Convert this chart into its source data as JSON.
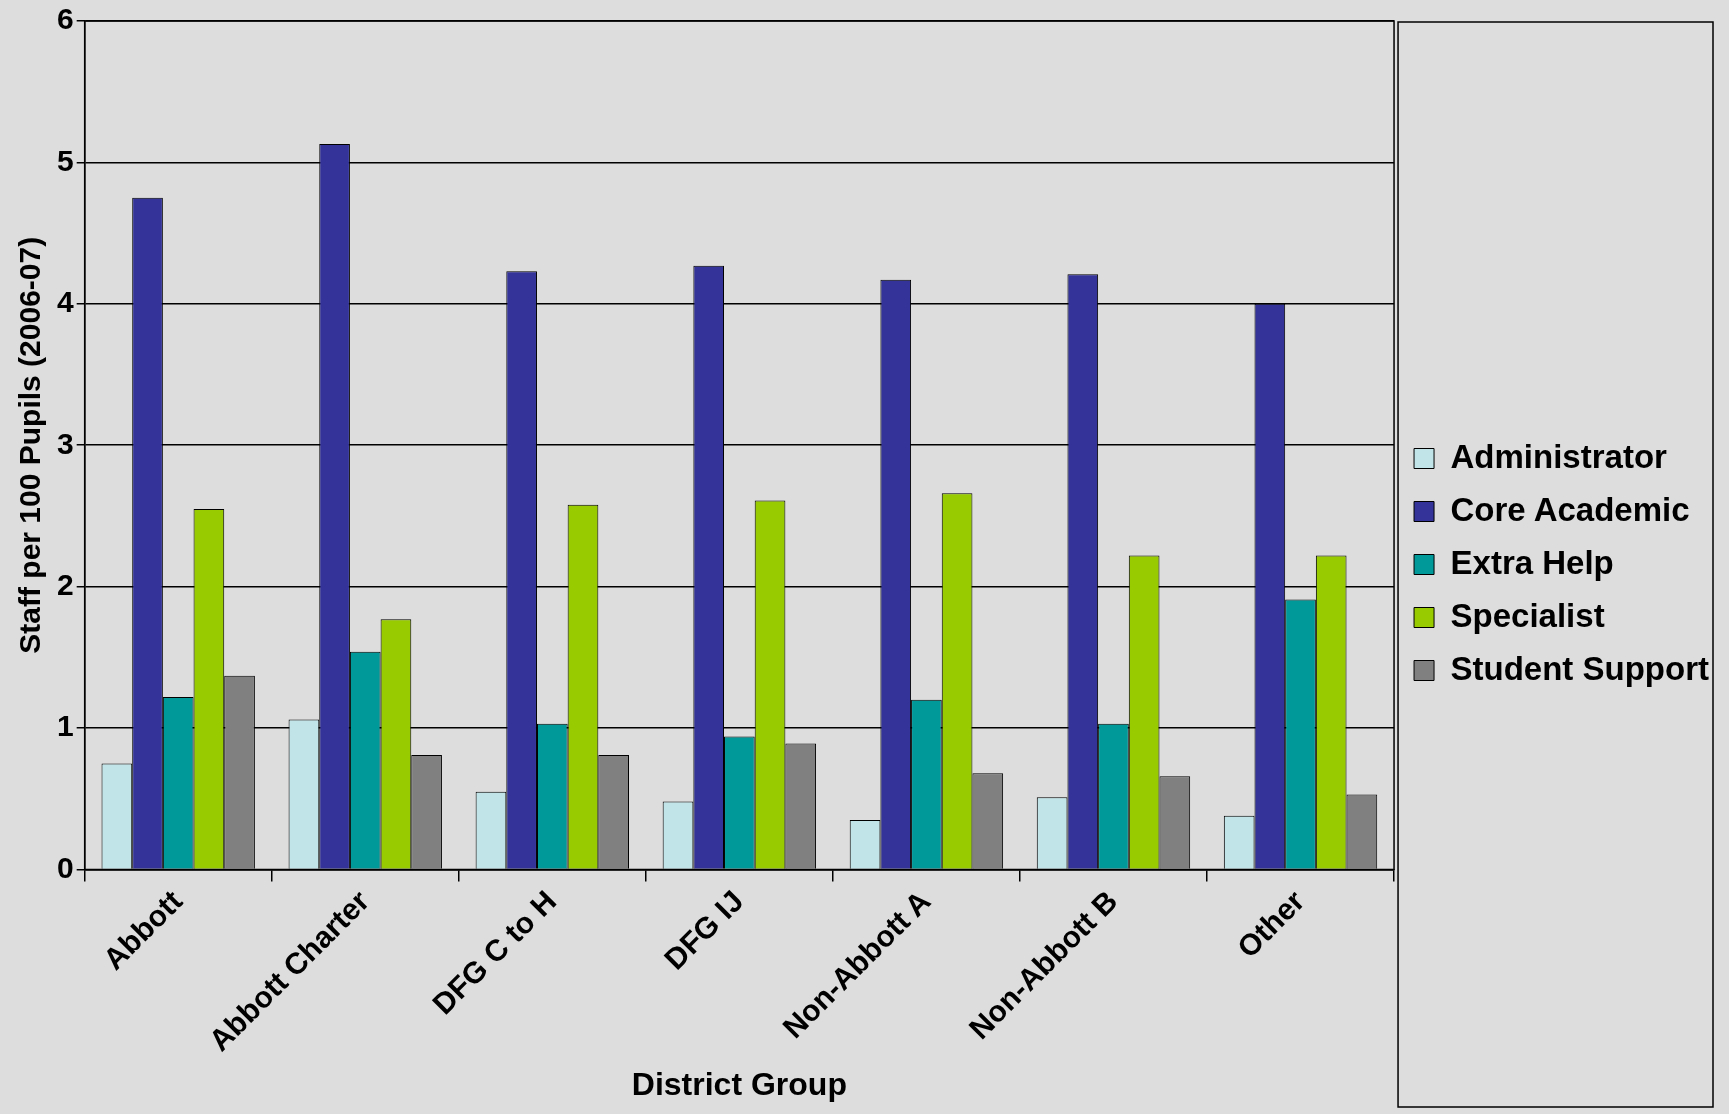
{
  "chart_data": {
    "type": "bar",
    "xlabel": "District Group",
    "ylabel": "Staff per 100 Pupils (2006-07)",
    "categories": [
      "Abbott",
      "Abbott Charter",
      "DFG C to H",
      "DFG IJ",
      "Non-Abbott A",
      "Non-Abbott B",
      "Other"
    ],
    "series": [
      {
        "name": "Administrator",
        "color": "#c0e4e8",
        "values": [
          0.75,
          1.06,
          0.55,
          0.48,
          0.35,
          0.51,
          0.38
        ]
      },
      {
        "name": "Core Academic",
        "color": "#333399",
        "values": [
          4.75,
          5.13,
          4.23,
          4.27,
          4.17,
          4.21,
          4.0
        ]
      },
      {
        "name": "Extra Help",
        "color": "#009999",
        "values": [
          1.22,
          1.54,
          1.03,
          0.94,
          1.2,
          1.03,
          1.91
        ]
      },
      {
        "name": "Specialist",
        "color": "#99cc00",
        "values": [
          2.55,
          1.77,
          2.58,
          2.61,
          2.66,
          2.22,
          2.22
        ]
      },
      {
        "name": "Student Support",
        "color": "#808080",
        "values": [
          1.37,
          0.81,
          0.81,
          0.89,
          0.68,
          0.66,
          0.53
        ]
      }
    ],
    "ylim": [
      0,
      6
    ],
    "yticks": [
      0,
      1,
      2,
      3,
      4,
      5,
      6
    ],
    "grid": "y",
    "legend": "right"
  }
}
